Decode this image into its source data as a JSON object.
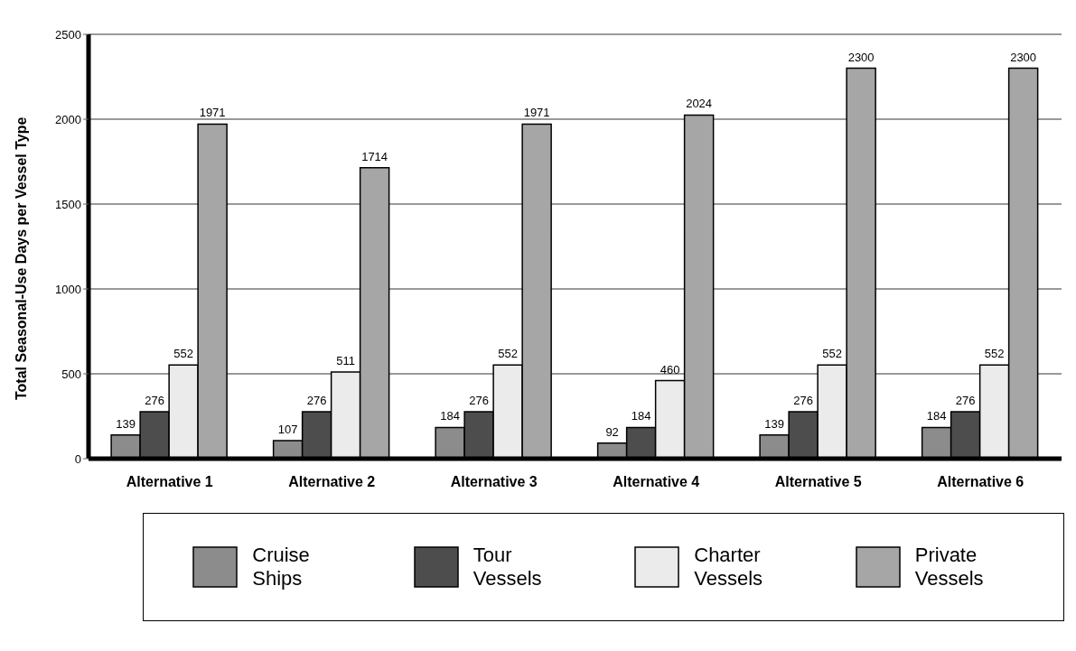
{
  "chart_data": {
    "type": "bar",
    "ylabel": "Total Seasonal-Use Days per Vessel Type",
    "categories": [
      "Alternative 1",
      "Alternative 2",
      "Alternative 3",
      "Alternative 4",
      "Alternative 5",
      "Alternative 6"
    ],
    "series": [
      {
        "name": "Cruise Ships",
        "color": "#8c8c8c",
        "values": [
          139,
          107,
          184,
          92,
          139,
          184
        ]
      },
      {
        "name": "Tour Vessels",
        "color": "#4d4d4d",
        "values": [
          276,
          276,
          276,
          184,
          276,
          276
        ]
      },
      {
        "name": "Charter Vessels",
        "color": "#ebebeb",
        "values": [
          552,
          511,
          552,
          460,
          552,
          552
        ]
      },
      {
        "name": "Private Vessels",
        "color": "#a6a6a6",
        "values": [
          1971,
          1714,
          1971,
          2024,
          2300,
          2300
        ]
      }
    ],
    "ylim": [
      0,
      2500
    ],
    "yticks": [
      0,
      500,
      1000,
      1500,
      2000,
      2500
    ],
    "grid": "y",
    "legend": "bottom",
    "data_labels": true
  }
}
